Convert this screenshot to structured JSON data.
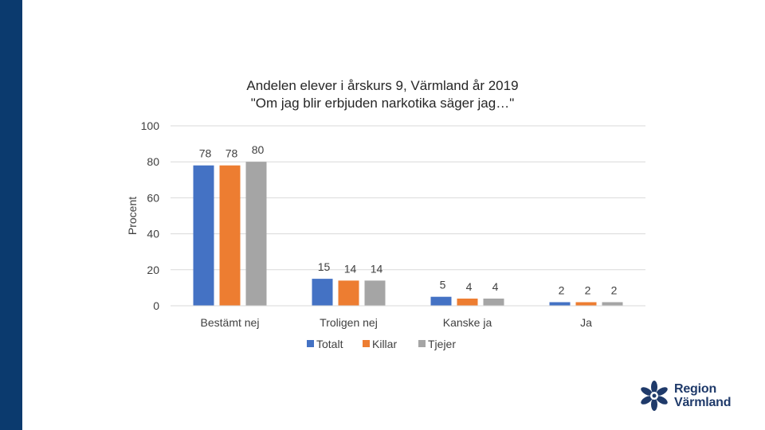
{
  "slide": {
    "brand_color": "#0b3a6e",
    "logo": {
      "line1": "Region",
      "line2": "Värmland",
      "color": "#1f3a6a",
      "icon": "star-flower-icon"
    }
  },
  "chart_data": {
    "type": "bar",
    "title_line1": "Andelen elever i årskurs 9, Värmland år 2019",
    "title_line2": "\"Om jag blir erbjuden narkotika säger jag…\"",
    "xlabel": "",
    "ylabel": "Procent",
    "ylim": [
      0,
      100
    ],
    "yticks": [
      0,
      20,
      40,
      60,
      80,
      100
    ],
    "grid": true,
    "legend_position": "bottom",
    "categories": [
      "Bestämt nej",
      "Troligen nej",
      "Kanske ja",
      "Ja"
    ],
    "series": [
      {
        "name": "Totalt",
        "color": "#4472c4",
        "values": [
          78,
          15,
          5,
          2
        ]
      },
      {
        "name": "Killar",
        "color": "#ed7d31",
        "values": [
          78,
          14,
          4,
          2
        ]
      },
      {
        "name": "Tjejer",
        "color": "#a5a5a5",
        "values": [
          80,
          14,
          4,
          2
        ]
      }
    ]
  }
}
